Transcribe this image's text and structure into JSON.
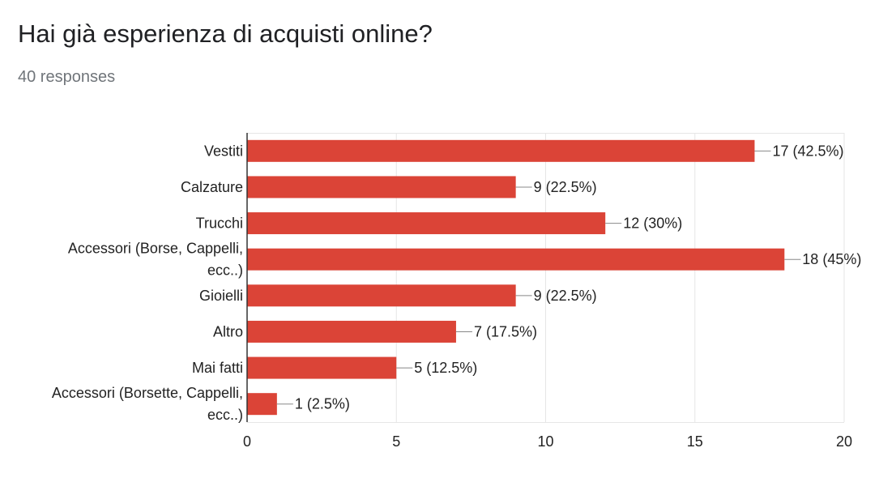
{
  "header": {
    "question": "Hai già esperienza di acquisti online?",
    "responses": "40 responses"
  },
  "colors": {
    "bar": "#db4437",
    "grid": "#e6e6e6",
    "axis": "#333333",
    "connector": "#888888"
  },
  "chart_data": {
    "type": "bar",
    "orientation": "horizontal",
    "categories": [
      [
        "Vestiti"
      ],
      [
        "Calzature"
      ],
      [
        "Trucchi"
      ],
      [
        "Accessori (Borse, Cappelli,",
        "ecc..)"
      ],
      [
        "Gioielli"
      ],
      [
        "Altro"
      ],
      [
        "Mai fatti"
      ],
      [
        "Accessori (Borsette, Cappelli,",
        "ecc..)"
      ]
    ],
    "values": [
      17,
      9,
      12,
      18,
      9,
      7,
      5,
      1
    ],
    "data_labels": [
      "17 (42.5%)",
      "9 (22.5%)",
      "12 (30%)",
      "18 (45%)",
      "9 (22.5%)",
      "7 (17.5%)",
      "5 (12.5%)",
      "1 (2.5%)"
    ],
    "xlim": [
      0,
      20
    ],
    "xticks": [
      0,
      5,
      10,
      15,
      20
    ],
    "grid": true
  }
}
